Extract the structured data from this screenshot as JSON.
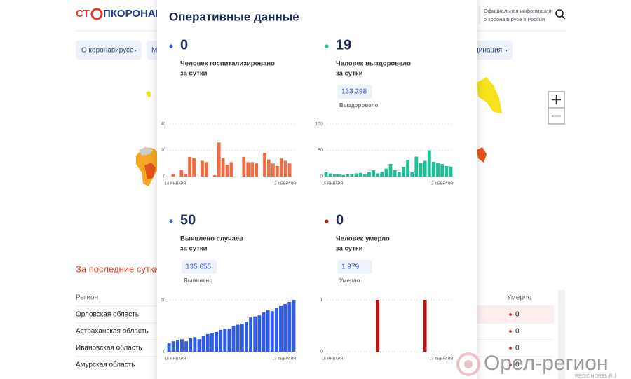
{
  "header": {
    "logo_left": "СТ",
    "logo_right": "ПКОРОНАВИ",
    "info_lines": [
      "Официальная информация",
      "о коронавирусе в России"
    ]
  },
  "nav": [
    "О коронавирусе",
    "М",
    "цинация"
  ],
  "section_title": "За последние сутки",
  "table": {
    "header": [
      "Регион",
      "Умерло"
    ],
    "rows": [
      [
        "Орловская область",
        0
      ],
      [
        "Астраханская область",
        0
      ],
      [
        "Ивановская область",
        0
      ],
      [
        "Амурская область",
        0
      ]
    ]
  },
  "panel": {
    "title": "Оперативные данные",
    "cards": [
      {
        "value": 0,
        "label_lines": [
          "Человек госпитализировано",
          "за сутки"
        ],
        "dot_color": "#3a5bd9"
      },
      {
        "value": 19,
        "label_lines": [
          "Человек выздоровело",
          "за сутки"
        ],
        "total": "133 298",
        "total_label": "Выздоровело",
        "dot_color": "#1fbf9a"
      },
      {
        "value": 50,
        "label_lines": [
          "Выявлено случаев",
          "за сутки"
        ],
        "total": "135 655",
        "total_label": "Выявлено",
        "dot_color": "#3a5bd9"
      },
      {
        "value": 0,
        "label_lines": [
          "Человек умерло",
          "за сутки"
        ],
        "total": "1 979",
        "total_label": "Умерло",
        "dot_color": "#b01818"
      }
    ]
  },
  "chart_data": [
    {
      "type": "bar",
      "color": "#f26b43",
      "ylim": [
        0,
        40
      ],
      "yticks": [
        0,
        20,
        40
      ],
      "grid": true,
      "categories": [
        "14 ЯНВАРЯ",
        null,
        null,
        null,
        null,
        null,
        null,
        null,
        null,
        null,
        null,
        null,
        null,
        null,
        null,
        null,
        null,
        null,
        null,
        null,
        null,
        null,
        null,
        null,
        null,
        null,
        null,
        null,
        null,
        null,
        "13 ФЕВРАЛЯ"
      ],
      "values": [
        0,
        2,
        0,
        5,
        2,
        15,
        14,
        0,
        12,
        11,
        0,
        1,
        26,
        14,
        9,
        11,
        0,
        0,
        15,
        11,
        11,
        10,
        0,
        18,
        13,
        10,
        8,
        14,
        12,
        10,
        0
      ]
    },
    {
      "type": "bar",
      "color": "#1fbf9a",
      "ylim": [
        0,
        100
      ],
      "yticks": [
        0,
        50,
        100
      ],
      "grid": true,
      "categories": [
        "15 ЯНВАРЯ",
        null,
        null,
        null,
        null,
        null,
        null,
        null,
        null,
        null,
        null,
        null,
        null,
        null,
        null,
        null,
        null,
        null,
        null,
        null,
        null,
        null,
        null,
        null,
        null,
        null,
        null,
        null,
        null,
        "13 ФЕВРАЛЯ"
      ],
      "values": [
        8,
        6,
        4,
        5,
        3,
        4,
        5,
        6,
        7,
        5,
        8,
        12,
        6,
        9,
        15,
        24,
        12,
        8,
        18,
        32,
        8,
        38,
        26,
        30,
        50,
        28,
        26,
        24,
        20,
        19
      ]
    },
    {
      "type": "bar",
      "color": "#2f5be8",
      "ylim": [
        0,
        50
      ],
      "yticks": [
        0,
        50
      ],
      "grid": true,
      "categories": [
        "15 ЯНВАРЯ",
        null,
        null,
        null,
        null,
        null,
        null,
        null,
        null,
        null,
        null,
        null,
        null,
        null,
        null,
        null,
        null,
        null,
        null,
        null,
        null,
        null,
        null,
        null,
        null,
        null,
        null,
        null,
        null,
        "13 ФЕВРАЛЯ"
      ],
      "values": [
        8,
        10,
        11,
        12,
        10,
        13,
        14,
        12,
        15,
        17,
        18,
        19,
        21,
        22,
        22,
        25,
        26,
        27,
        29,
        33,
        34,
        35,
        38,
        40,
        39,
        42,
        44,
        46,
        48,
        50
      ]
    },
    {
      "type": "bar",
      "color": "#c01515",
      "ylim": [
        0,
        1
      ],
      "yticks": [
        0,
        1
      ],
      "grid": true,
      "categories": [
        "15 ЯНВАРЯ",
        null,
        null,
        null,
        null,
        null,
        null,
        null,
        null,
        null,
        null,
        null,
        null,
        null,
        null,
        null,
        null,
        null,
        null,
        null,
        null,
        null,
        null,
        null,
        null,
        null,
        null,
        null,
        null,
        "13 ФЕВРАЛЯ"
      ],
      "values": [
        0,
        0,
        0,
        0,
        0,
        0,
        0,
        0,
        0,
        0,
        0,
        0,
        1,
        0,
        0,
        0,
        0,
        0,
        0,
        0,
        0,
        0,
        0,
        1,
        0,
        0,
        0,
        0,
        0,
        0
      ]
    }
  ],
  "watermark": {
    "name": "Орел-регион",
    "site": "REGIONOREL.RU"
  }
}
